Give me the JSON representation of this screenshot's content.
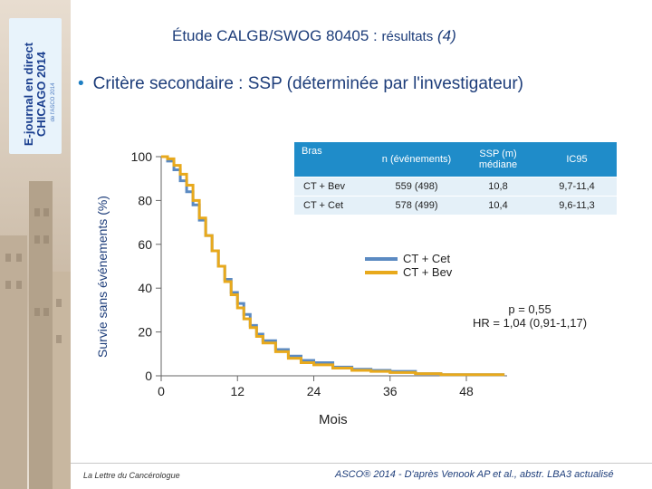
{
  "brand": {
    "line1": "E-journal en direct",
    "line2": "CHICAGO 2014",
    "line3": "de l'ASCO 2014"
  },
  "title": {
    "main": "Étude CALGB/SWOG 80405 : ",
    "sub": "résultats",
    "paren": "(4)"
  },
  "bullet": "Critère secondaire : SSP (déterminée par l'investigateur)",
  "table": {
    "headers": [
      "Bras",
      "n (événements)",
      "SSP (m) médiane",
      "IC95"
    ],
    "rows": [
      [
        "CT + Bev",
        "559 (498)",
        "10,8",
        "9,7-11,4"
      ],
      [
        "CT + Cet",
        "578 (499)",
        "10,4",
        "9,6-11,3"
      ]
    ]
  },
  "legend": [
    {
      "label": "CT + Cet",
      "color": "#5b8ac2"
    },
    {
      "label": "CT + Bev",
      "color": "#e8a91c"
    }
  ],
  "stats": {
    "line1": "p = 0,55",
    "line2": "HR = 1,04 (0,91-1,17)"
  },
  "footer": {
    "left": "La Lettre du Cancérologue",
    "right": "ASCO® 2014 - D'après Venook AP et al., abstr. LBA3 actualisé"
  },
  "chart_data": {
    "type": "line",
    "ylabel": "Survie sans événements (%)",
    "xlabel": "Mois",
    "xlim": [
      0,
      54
    ],
    "ylim": [
      0,
      100
    ],
    "xticks": [
      0,
      12,
      24,
      36,
      48
    ],
    "yticks": [
      0,
      20,
      40,
      60,
      80,
      100
    ],
    "series": [
      {
        "name": "CT + Cet",
        "color": "#5b8ac2",
        "x": [
          0,
          1,
          2,
          3,
          4,
          5,
          6,
          7,
          8,
          9,
          10,
          11,
          12,
          13,
          14,
          15,
          16,
          18,
          20,
          22,
          24,
          27,
          30,
          33,
          36,
          40,
          44,
          48
        ],
        "y": [
          100,
          98,
          94,
          89,
          84,
          78,
          71,
          64,
          57,
          50,
          44,
          38,
          33,
          28,
          23,
          19,
          16,
          12,
          9,
          7,
          6,
          4,
          3,
          2.5,
          2,
          1,
          0.5,
          0.5
        ]
      },
      {
        "name": "CT + Bev",
        "color": "#e8a91c",
        "x": [
          0,
          1,
          2,
          3,
          4,
          5,
          6,
          7,
          8,
          9,
          10,
          11,
          12,
          13,
          14,
          15,
          16,
          18,
          20,
          22,
          24,
          27,
          30,
          33,
          36,
          40,
          44,
          48
        ],
        "y": [
          100,
          99,
          96,
          92,
          87,
          80,
          72,
          64,
          57,
          50,
          43,
          37,
          31,
          26,
          22,
          18,
          15,
          11,
          8,
          6,
          5,
          3.5,
          2.5,
          2,
          1.5,
          1,
          0.5,
          0.5
        ]
      }
    ]
  }
}
